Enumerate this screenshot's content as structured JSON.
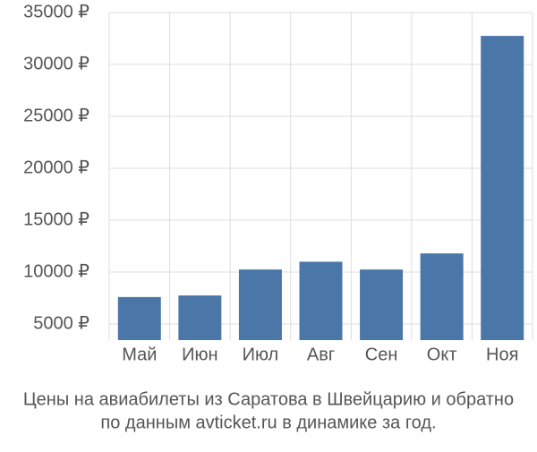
{
  "chart_data": {
    "type": "bar",
    "title": [
      "Цены на авиабилеты из Саратова в Швейцарию и обратно",
      "по данным avticket.ru в динамике за год."
    ],
    "categories": [
      "Май",
      "Июн",
      "Июл",
      "Авг",
      "Сен",
      "Окт",
      "Ноя"
    ],
    "values": [
      7600,
      7750,
      10250,
      11000,
      10250,
      11800,
      32750
    ],
    "color": "#4a76a8",
    "ylim": [
      3450,
      35000
    ],
    "yticks": [
      {
        "value": 5000,
        "label": "5000 ₽"
      },
      {
        "value": 10000,
        "label": "10000 ₽"
      },
      {
        "value": 15000,
        "label": "15000 ₽"
      },
      {
        "value": 20000,
        "label": "20000 ₽"
      },
      {
        "value": 25000,
        "label": "25000 ₽"
      },
      {
        "value": 30000,
        "label": "30000 ₽"
      },
      {
        "value": 35000,
        "label": "35000 ₽"
      }
    ],
    "grid": true
  }
}
